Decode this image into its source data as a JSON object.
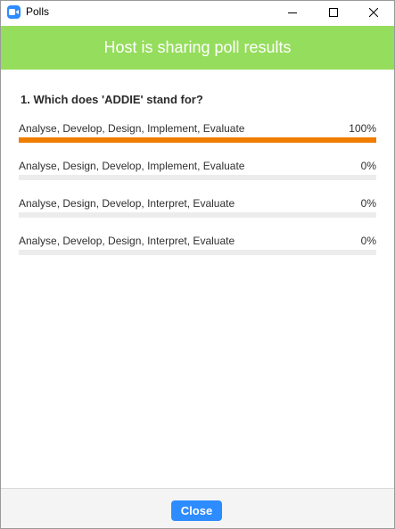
{
  "window": {
    "title": "Polls",
    "app_icon": "zoom-camera-icon",
    "controls": [
      "minimize-icon",
      "maximize-icon",
      "close-icon"
    ]
  },
  "banner": {
    "text": "Host is sharing poll results",
    "color": "#95dd5c"
  },
  "poll": {
    "question": "1. Which does 'ADDIE' stand for?",
    "options": [
      {
        "label": "Analyse, Develop, Design, Implement, Evaluate",
        "percent_label": "100%",
        "percent": 100
      },
      {
        "label": "Analyse, Design, Develop, Implement, Evaluate",
        "percent_label": "0%",
        "percent": 0
      },
      {
        "label": "Analyse, Design, Develop, Interpret, Evaluate",
        "percent_label": "0%",
        "percent": 0
      },
      {
        "label": "Analyse, Develop, Design, Interpret, Evaluate",
        "percent_label": "0%",
        "percent": 0
      }
    ],
    "bar_color": "#f07d00",
    "track_color": "#ececec"
  },
  "footer": {
    "close_label": "Close",
    "button_color": "#2d8cff"
  }
}
